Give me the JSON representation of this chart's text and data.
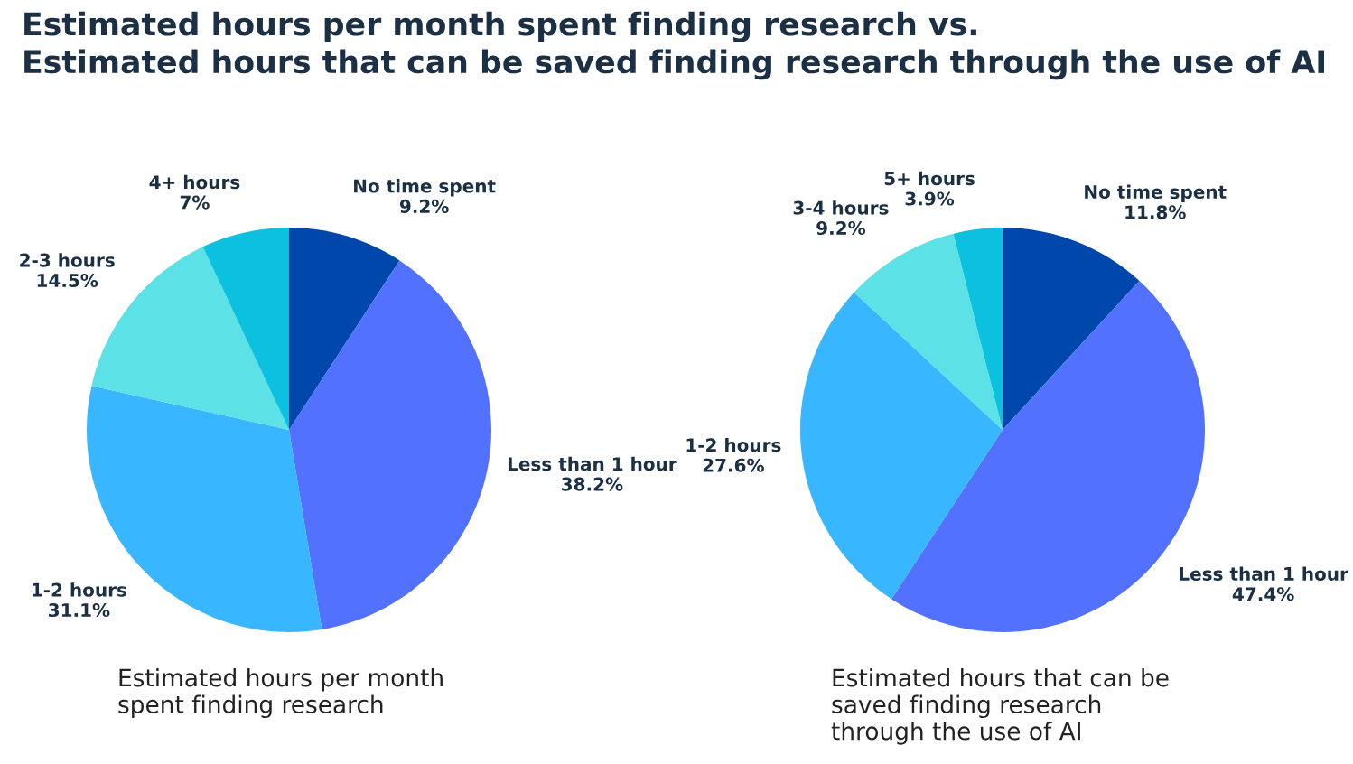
{
  "chart_data": [
    {
      "type": "pie",
      "title": "Estimated hours per month spent finding research vs.\nEstimated hours that can be saved finding research through the use of AI",
      "categories": [
        "No time spent",
        "Less than 1 hour",
        "1-2 hours",
        "2-3 hours",
        "4+ hours"
      ],
      "values": [
        9.2,
        38.2,
        31.1,
        14.5,
        7
      ],
      "value_labels": [
        "9.2%",
        "38.2%",
        "31.1%",
        "14.5%",
        "7%"
      ],
      "colors": [
        "#0047ab",
        "#5271ff",
        "#38b6ff",
        "#5ce1e6",
        "#0cc0df"
      ],
      "annotations": [
        "Estimated hours per month\nspent finding research"
      ]
    },
    {
      "type": "pie",
      "categories": [
        "No time spent",
        "Less than 1 hour",
        "1-2 hours",
        "3-4 hours",
        "5+ hours"
      ],
      "values": [
        11.8,
        47.4,
        27.6,
        9.2,
        3.9
      ],
      "value_labels": [
        "11.8%",
        "47.4%",
        "27.6%",
        "9.2%",
        "3.9%"
      ],
      "colors": [
        "#0047ab",
        "#5271ff",
        "#38b6ff",
        "#5ce1e6",
        "#0cc0df"
      ],
      "annotations": [
        "Estimated hours that can be\nsaved finding research\nthrough the use of AI"
      ]
    }
  ]
}
